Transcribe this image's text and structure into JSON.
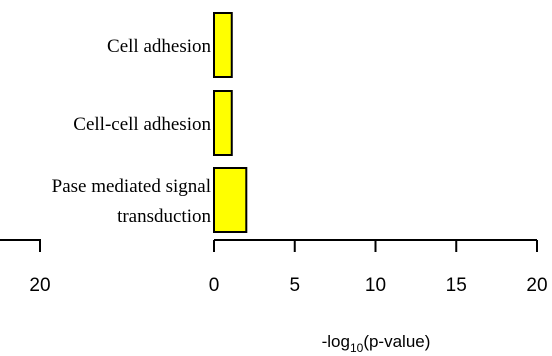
{
  "chart_data": {
    "type": "bar",
    "orientation": "horizontal",
    "categories": [
      "Cell adhesion",
      "Cell-cell adhesion",
      "Pase mediated signal transduction"
    ],
    "category_label_lines": [
      [
        "Cell adhesion"
      ],
      [
        "Cell-cell adhesion"
      ],
      [
        "Pase mediated signal",
        "transduction"
      ]
    ],
    "series": [
      {
        "values": [
          1.1,
          1.1,
          2.0
        ],
        "color": "#ffff00"
      }
    ],
    "xlabel": {
      "prefix": "-log",
      "subscript": "10",
      "suffix": "(p-value)"
    },
    "xlim": [
      0,
      20
    ],
    "xticks": [
      "0",
      "5",
      "10",
      "15",
      "20"
    ],
    "left_panel_ticks": [
      "20"
    ],
    "bar_edge_color": "#000000",
    "grid": false,
    "legend": "none"
  }
}
